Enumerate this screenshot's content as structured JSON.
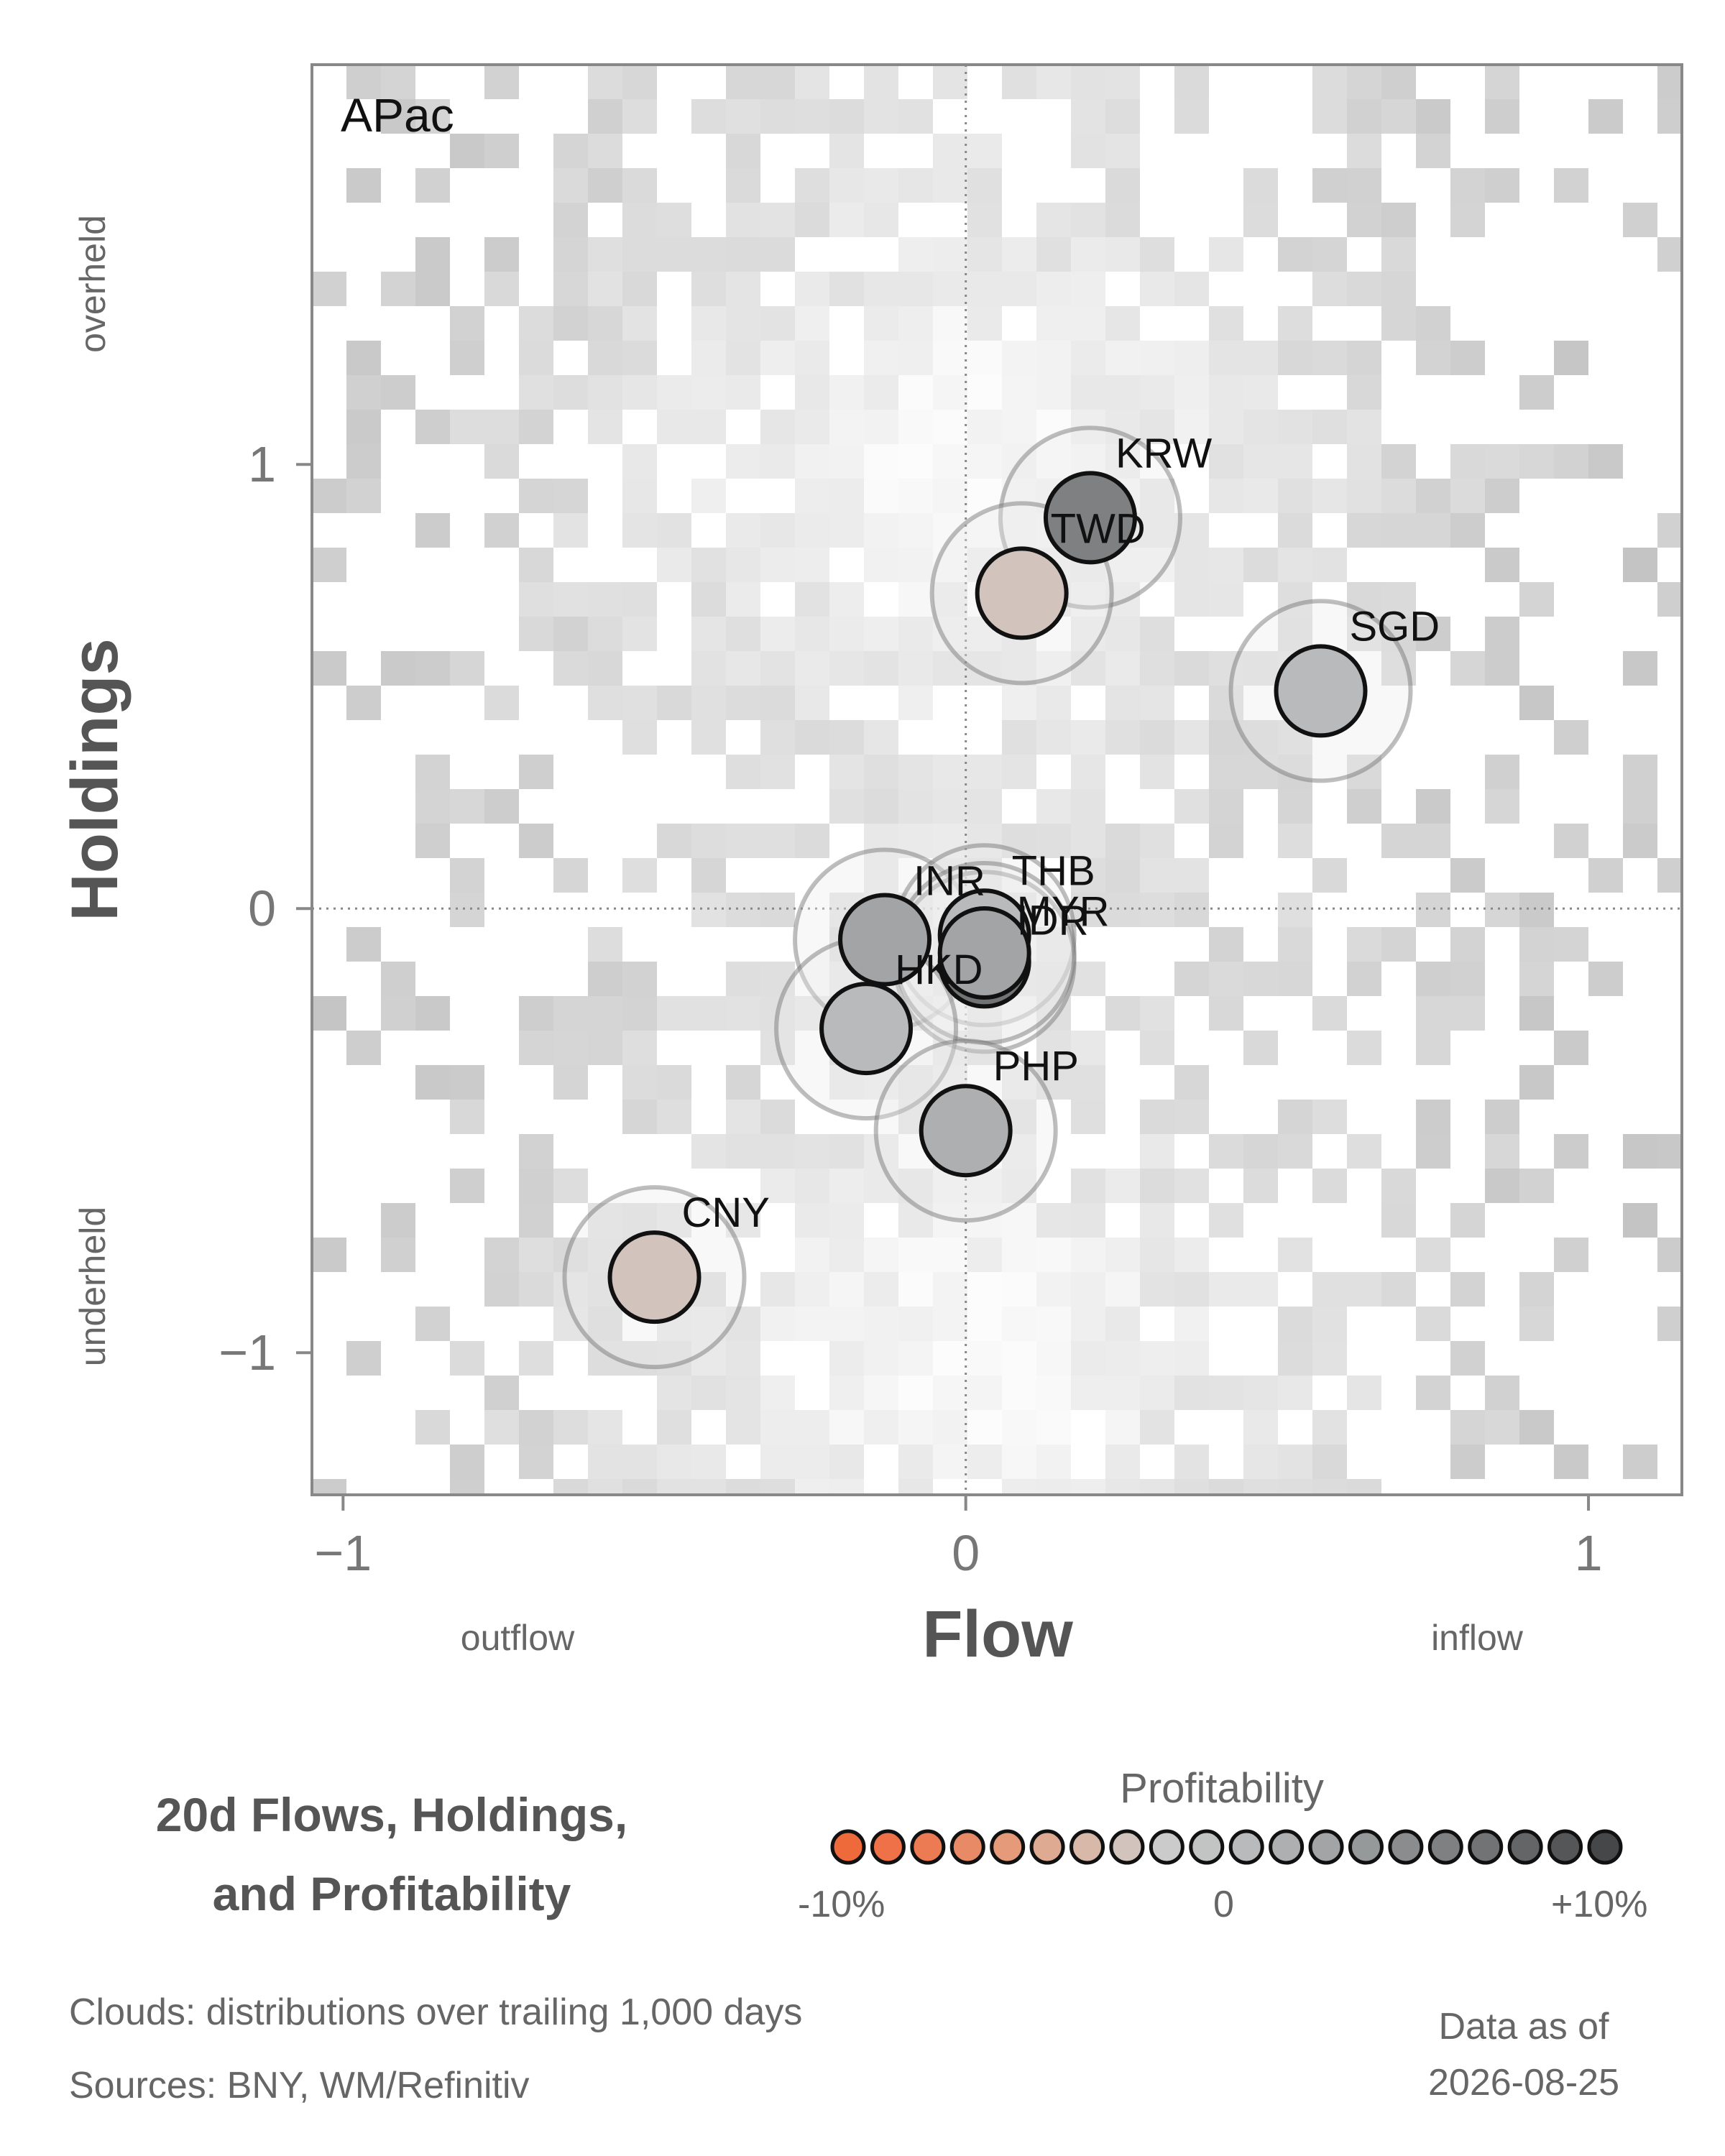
{
  "chart_data": {
    "type": "scatter",
    "title": "20d Flows, Holdings,",
    "title_line2": "and Profitability",
    "panel_label": "APac",
    "xlabel": "Flow",
    "ylabel": "Holdings",
    "x_left_label": "outflow",
    "x_right_label": "inflow",
    "y_top_label": "overheld",
    "y_bottom_label": "underheld",
    "xlim": [
      -1.05,
      1.15
    ],
    "ylim": [
      -1.32,
      1.9
    ],
    "x_ticks": [
      -1,
      0,
      1
    ],
    "x_tick_labels": [
      "−1",
      "0",
      "1"
    ],
    "y_ticks": [
      -1,
      0,
      1
    ],
    "y_tick_labels": [
      "−1",
      "0",
      "1"
    ],
    "reference_lines": {
      "x": 0,
      "y": 0,
      "style": "dotted"
    },
    "background": "grayscale density heatmap (cloud distributions)",
    "points": [
      {
        "name": "KRW",
        "x": 0.2,
        "y": 0.88,
        "profitability": 6
      },
      {
        "name": "TWD",
        "x": 0.09,
        "y": 0.71,
        "profitability": -3
      },
      {
        "name": "SGD",
        "x": 0.57,
        "y": 0.49,
        "profitability": 1
      },
      {
        "name": "INR",
        "x": -0.13,
        "y": -0.07,
        "profitability": 3
      },
      {
        "name": "THB",
        "x": 0.03,
        "y": -0.06,
        "profitability": 1
      },
      {
        "name": "IDR",
        "x": 0.03,
        "y": -0.12,
        "profitability": 7
      },
      {
        "name": "MYR",
        "x": 0.03,
        "y": -0.1,
        "profitability": 3
      },
      {
        "name": "HKD",
        "x": -0.16,
        "y": -0.27,
        "profitability": 1
      },
      {
        "name": "PHP",
        "x": 0.0,
        "y": -0.5,
        "profitability": 2
      },
      {
        "name": "CNY",
        "x": -0.5,
        "y": -0.83,
        "profitability": -3
      }
    ]
  },
  "legend": {
    "title": "Profitability",
    "left_label": "-10%",
    "mid_label": "0",
    "right_label": "+10%",
    "swatches": [
      "#ef6a3a",
      "#ee7147",
      "#ec7b53",
      "#e98a66",
      "#e59a7a",
      "#dfaa92",
      "#d8b8a8",
      "#d2c4bc",
      "#cbcbcb",
      "#c2c4c4",
      "#b8babb",
      "#adafb0",
      "#a2a4a5",
      "#96999a",
      "#8a8c8d",
      "#7e8081",
      "#717374",
      "#636566",
      "#555657",
      "#464748"
    ]
  },
  "footer": {
    "clouds": "Clouds:  distributions over trailing 1,000 days",
    "sources": "Sources:  BNY, WM/Refinitiv",
    "asof_line1": "Data as of",
    "asof_line2": "2026-08-25"
  }
}
